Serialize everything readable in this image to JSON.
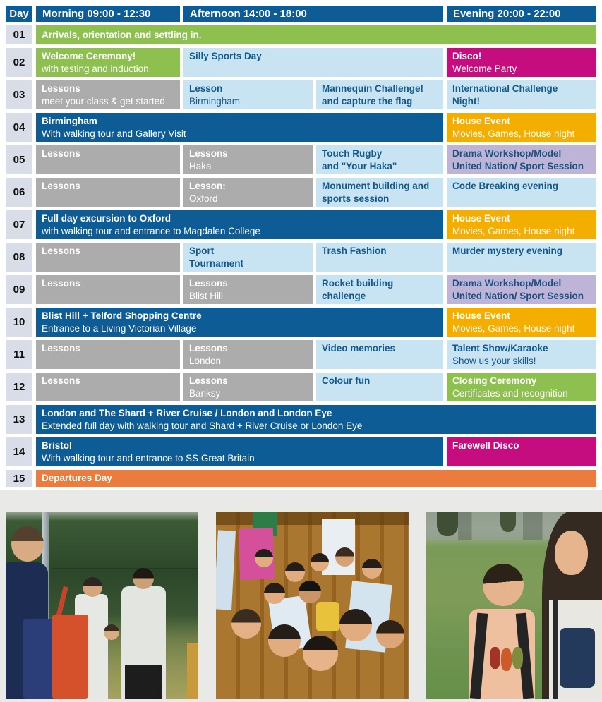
{
  "header": {
    "day": "Day",
    "morning": "Morning 09:00 - 12:30",
    "afternoon": "Afternoon 14:00 - 18:00",
    "evening": "Evening 20:00 - 22:00"
  },
  "colors": {
    "header_blue": "#0d5c96",
    "green": "#8ec04f",
    "light_blue": "#c8e4f3",
    "gray": "#acacac",
    "magenta": "#c60d7f",
    "yellow": "#f3ae00",
    "purple": "#bdb4d8",
    "orange": "#ec7c3d",
    "day_cell_bg": "#d9dde8",
    "light_blue_text": "#14598c",
    "photo_section_bg": "#e9e9e7"
  },
  "rows": [
    {
      "day": "01",
      "cells": [
        {
          "t": "Arrivals, orientation and settling in."
        }
      ]
    },
    {
      "day": "02",
      "cells": [
        {
          "t": "Welcome Ceremony!",
          "s": "with testing and induction"
        },
        {
          "t": "Silly Sports Day"
        },
        {
          "t": "Disco!",
          "s": "Welcome Party"
        }
      ]
    },
    {
      "day": "03",
      "cells": [
        {
          "t": "Lessons",
          "s": "meet your class & get started"
        },
        {
          "t": "Lesson",
          "s": "Birmingham"
        },
        {
          "t": "Mannequin Challenge!",
          "t2": "and capture the flag"
        },
        {
          "t": "International Challenge",
          "t2": "Night!"
        }
      ]
    },
    {
      "day": "04",
      "cells": [
        {
          "t": "Birmingham",
          "s": "With walking tour and Gallery Visit"
        },
        {
          "t": "House Event",
          "s": "Movies, Games, House night"
        }
      ]
    },
    {
      "day": "05",
      "cells": [
        {
          "t": "Lessons"
        },
        {
          "t": "Lessons",
          "s": "Haka"
        },
        {
          "t": "Touch Rugby",
          "t2": "and \"Your Haka\""
        },
        {
          "t": "Drama Workshop/Model",
          "t2": "United Nation/ Sport Session"
        }
      ]
    },
    {
      "day": "06",
      "cells": [
        {
          "t": "Lessons"
        },
        {
          "t": "Lesson:",
          "s": "Oxford"
        },
        {
          "t": "Monument building and",
          "t2": "sports session"
        },
        {
          "t": "Code Breaking evening"
        }
      ]
    },
    {
      "day": "07",
      "cells": [
        {
          "t": "Full day excursion to Oxford",
          "s": "with walking tour and entrance to Magdalen College"
        },
        {
          "t": "House Event",
          "s": "Movies, Games, House night"
        }
      ]
    },
    {
      "day": "08",
      "cells": [
        {
          "t": "Lessons"
        },
        {
          "t": "Sport",
          "t2": "Tournament"
        },
        {
          "t": "Trash Fashion"
        },
        {
          "t": "Murder mystery evening"
        }
      ]
    },
    {
      "day": "09",
      "cells": [
        {
          "t": "Lessons"
        },
        {
          "t": "Lessons",
          "s": "Blist Hill"
        },
        {
          "t": "Rocket building",
          "t2": "challenge"
        },
        {
          "t": "Drama Workshop/Model",
          "t2": "United Nation/ Sport Session"
        }
      ]
    },
    {
      "day": "10",
      "cells": [
        {
          "t": "Blist Hill + Telford Shopping Centre",
          "s": "Entrance to a Living Victorian Village"
        },
        {
          "t": "House Event",
          "s": "Movies, Games, House night"
        }
      ]
    },
    {
      "day": "11",
      "cells": [
        {
          "t": "Lessons"
        },
        {
          "t": "Lessons",
          "s": "London"
        },
        {
          "t": "Video memories"
        },
        {
          "t": "Talent Show/Karaoke",
          "s": "Show us your skills!"
        }
      ]
    },
    {
      "day": "12",
      "cells": [
        {
          "t": "Lessons"
        },
        {
          "t": "Lessons",
          "s": "Banksy"
        },
        {
          "t": "Colour fun"
        },
        {
          "t": "Closing Ceremony",
          "s": "Certificates and recognition"
        }
      ]
    },
    {
      "day": "13",
      "cells": [
        {
          "t": "London and The Shard + River Cruise / London and London Eye",
          "s": "Extended full day with walking tour and Shard + River Cruise or London Eye"
        }
      ]
    },
    {
      "day": "14",
      "cells": [
        {
          "t": "Bristol",
          "s": "With walking tour and entrance to SS Great Britain"
        },
        {
          "t": "Farewell Disco"
        }
      ]
    },
    {
      "day": "15",
      "cells": [
        {
          "t": "Departures Day"
        }
      ]
    }
  ],
  "photos": [
    {
      "label": "children outdoors on sports field holding orange and blue bags"
    },
    {
      "label": "large group selfie of students indoors against wooden wall"
    },
    {
      "label": "two smiling students on a lawn, boy with backpack and older girl"
    }
  ]
}
